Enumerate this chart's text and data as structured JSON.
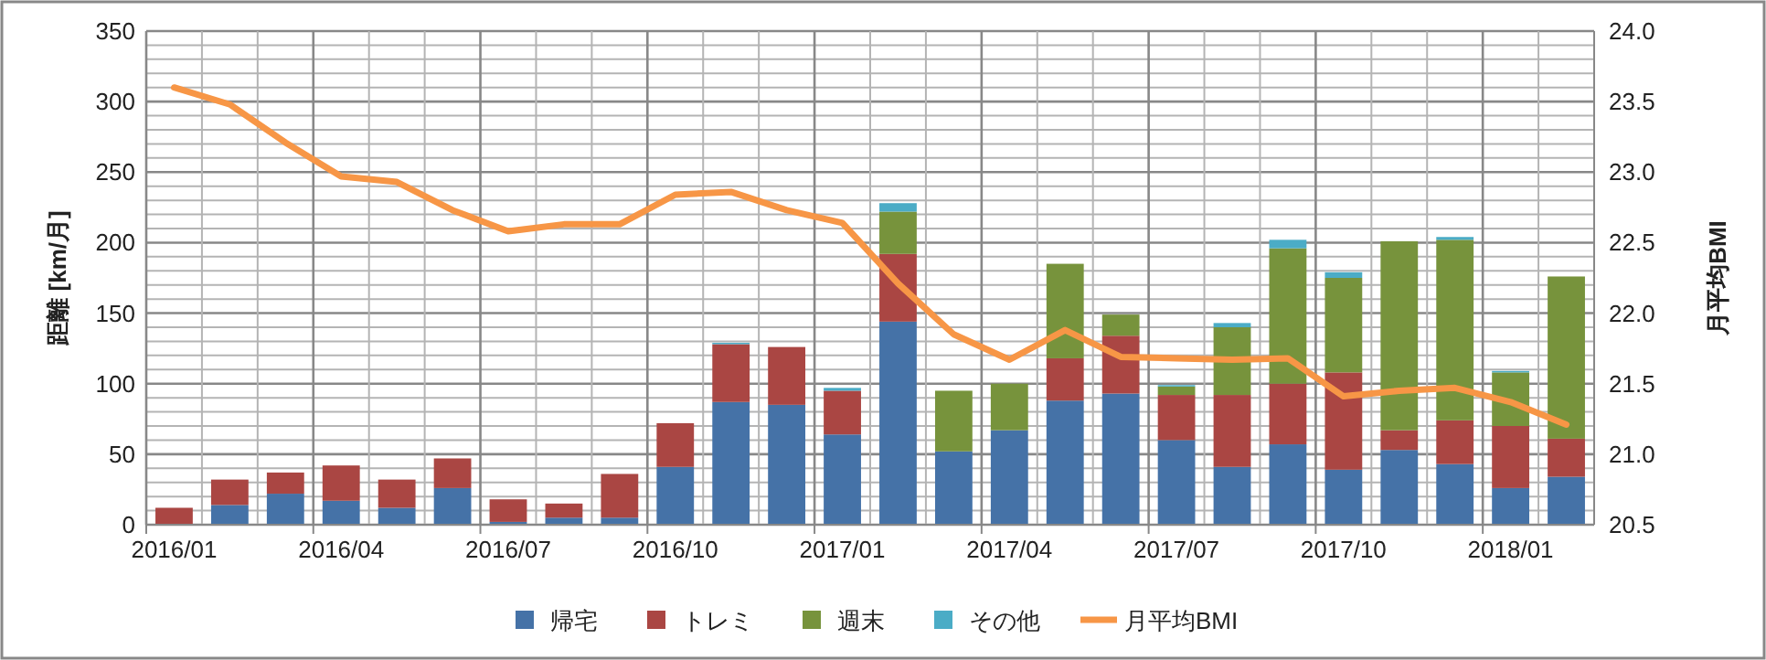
{
  "chart_data": {
    "type": "bar",
    "stacked": true,
    "ylabel": "距離 [km/月]",
    "y2label": "月平均BMI",
    "categories": [
      "2016/01",
      null,
      null,
      "2016/04",
      null,
      null,
      "2016/07",
      null,
      null,
      "2016/10",
      null,
      null,
      "2017/01",
      null,
      null,
      "2017/04",
      null,
      null,
      "2017/07",
      null,
      null,
      "2017/10",
      null,
      null,
      "2018/01",
      null
    ],
    "series": [
      {
        "name": "帰宅",
        "color": "#4572a7",
        "values": [
          0,
          14,
          22,
          17,
          12,
          26,
          2,
          5,
          5,
          41,
          87,
          85,
          64,
          144,
          52,
          67,
          88,
          93,
          60,
          41,
          57,
          39,
          53,
          43,
          26,
          34
        ]
      },
      {
        "name": "トレミ",
        "color": "#aa4643",
        "values": [
          12,
          18,
          15,
          25,
          20,
          21,
          16,
          10,
          31,
          31,
          41,
          41,
          31,
          48,
          0,
          0,
          30,
          41,
          32,
          51,
          43,
          69,
          14,
          31,
          44,
          27
        ]
      },
      {
        "name": "週末",
        "color": "#77933c",
        "values": [
          0,
          0,
          0,
          0,
          0,
          0,
          0,
          0,
          0,
          0,
          0,
          0,
          0,
          30,
          43,
          33,
          67,
          15,
          6,
          48,
          96,
          67,
          134,
          128,
          38,
          115
        ]
      },
      {
        "name": "その他",
        "color": "#4bacc6",
        "values": [
          0,
          0,
          0,
          0,
          0,
          0,
          0,
          0,
          0,
          0,
          1,
          0,
          2,
          6,
          0,
          0,
          0,
          0,
          1,
          3,
          6,
          4,
          0,
          2,
          1,
          0
        ]
      },
      {
        "name": "月平均BMI",
        "type": "line",
        "axis": "y2",
        "color": "#f79646",
        "values": [
          23.6,
          23.48,
          23.21,
          22.97,
          22.93,
          22.73,
          22.58,
          22.63,
          22.63,
          22.84,
          22.86,
          22.73,
          22.64,
          22.21,
          21.85,
          21.67,
          21.88,
          21.69,
          21.68,
          21.67,
          21.68,
          21.41,
          21.45,
          21.47,
          21.37,
          21.21
        ]
      }
    ],
    "ylim": [
      0,
      350
    ],
    "yticks": [
      0,
      {
        "value": 10,
        "label": null
      },
      {
        "value": 20,
        "label": null
      },
      {
        "value": 30,
        "label": null
      },
      {
        "value": 40,
        "label": null
      },
      50,
      {
        "value": 60,
        "label": null
      },
      {
        "value": 70,
        "label": null
      },
      {
        "value": 80,
        "label": null
      },
      {
        "value": 90,
        "label": null
      },
      100,
      {
        "value": 110,
        "label": null
      },
      {
        "value": 120,
        "label": null
      },
      {
        "value": 130,
        "label": null
      },
      {
        "value": 140,
        "label": null
      },
      150,
      {
        "value": 160,
        "label": null
      },
      {
        "value": 170,
        "label": null
      },
      {
        "value": 180,
        "label": null
      },
      {
        "value": 190,
        "label": null
      },
      200,
      {
        "value": 210,
        "label": null
      },
      {
        "value": 220,
        "label": null
      },
      {
        "value": 230,
        "label": null
      },
      {
        "value": 240,
        "label": null
      },
      250,
      {
        "value": 260,
        "label": null
      },
      {
        "value": 270,
        "label": null
      },
      {
        "value": 280,
        "label": null
      },
      {
        "value": 290,
        "label": null
      },
      300,
      {
        "value": 310,
        "label": null
      },
      {
        "value": 320,
        "label": null
      },
      {
        "value": 330,
        "label": null
      },
      {
        "value": 340,
        "label": null
      },
      350
    ],
    "y2lim": [
      20.5,
      24.0
    ],
    "y2ticks": [
      20.5,
      {
        "value": 21,
        "label": "21.0"
      },
      21.5,
      {
        "value": 22,
        "label": "22.0"
      },
      22.5,
      {
        "value": 23,
        "label": "23.0"
      },
      23.5,
      {
        "value": 24,
        "label": "24.0"
      }
    ],
    "grid": true,
    "legend": "bottom",
    "marker": "none",
    "line_style": "solid"
  }
}
